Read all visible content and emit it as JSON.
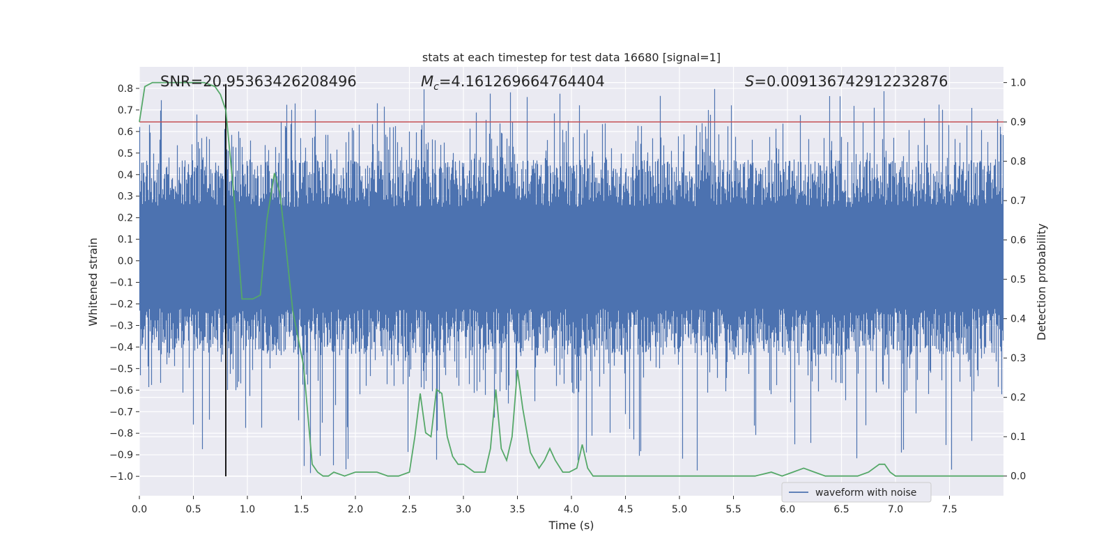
{
  "chart_data": {
    "type": "line",
    "title": "stats at each timestep for test data 16680 [signal=1]",
    "xlabel": "Time (s)",
    "ylabel": "Whitened strain",
    "ylabel_right": "Detection probability",
    "xlim": [
      0.0,
      8.0
    ],
    "ylim": [
      -1.09,
      0.9
    ],
    "ylim_right": [
      -0.05,
      1.04
    ],
    "x_ticks": [
      "0.0",
      "0.5",
      "1.0",
      "1.5",
      "2.0",
      "2.5",
      "3.0",
      "3.5",
      "4.0",
      "4.5",
      "5.0",
      "5.5",
      "6.0",
      "6.5",
      "7.0",
      "7.5"
    ],
    "y_ticks": [
      "0.8",
      "0.7",
      "0.6",
      "0.5",
      "0.4",
      "0.3",
      "0.2",
      "0.1",
      "0.0",
      "−0.1",
      "−0.2",
      "−0.3",
      "−0.4",
      "−0.5",
      "−0.6",
      "−0.7",
      "−0.8",
      "−0.9",
      "−1.0"
    ],
    "y_ticks_right": [
      "1.0",
      "0.9",
      "0.8",
      "0.7",
      "0.6",
      "0.5",
      "0.4",
      "0.3",
      "0.2",
      "0.1",
      "0.0"
    ],
    "annotations": {
      "snr": "SNR=20.95363426208496",
      "mc": "=4.161269664764404",
      "mc_symbol": "M",
      "mc_sub": "c",
      "s": "=0.009136742912232876",
      "s_symbol": "S"
    },
    "threshold_right": 0.9,
    "marker_time": 0.8,
    "series": [
      {
        "name": "waveform with noise",
        "color": "#4c72b0",
        "kind": "strain",
        "noise_band": [
          -0.37,
          0.4
        ],
        "peak_band": [
          -1.0,
          0.8
        ]
      },
      {
        "name": "detection probability",
        "color": "#55a868",
        "axis": "right",
        "x": [
          0.0,
          0.05,
          0.12,
          0.2,
          0.3,
          0.4,
          0.5,
          0.6,
          0.7,
          0.75,
          0.8,
          0.88,
          0.95,
          1.0,
          1.05,
          1.12,
          1.18,
          1.25,
          1.3,
          1.35,
          1.42,
          1.47,
          1.52,
          1.6,
          1.65,
          1.7,
          1.75,
          1.8,
          1.9,
          2.0,
          2.1,
          2.2,
          2.3,
          2.4,
          2.5,
          2.55,
          2.6,
          2.65,
          2.7,
          2.75,
          2.8,
          2.85,
          2.9,
          2.95,
          3.0,
          3.05,
          3.1,
          3.2,
          3.25,
          3.3,
          3.35,
          3.4,
          3.45,
          3.5,
          3.55,
          3.62,
          3.7,
          3.75,
          3.8,
          3.85,
          3.92,
          3.98,
          4.05,
          4.1,
          4.15,
          4.2,
          4.25,
          4.3,
          4.35,
          4.5,
          4.7,
          5.0,
          5.3,
          5.5,
          5.7,
          5.85,
          5.95,
          6.05,
          6.15,
          6.25,
          6.35,
          6.5,
          6.65,
          6.75,
          6.85,
          6.9,
          6.95,
          7.0,
          7.05,
          7.15,
          7.3,
          7.5,
          7.7,
          7.85,
          8.0
        ],
        "values": [
          0.9,
          0.99,
          1.0,
          1.0,
          1.0,
          1.0,
          1.0,
          1.0,
          0.99,
          0.97,
          0.93,
          0.7,
          0.45,
          0.45,
          0.45,
          0.46,
          0.65,
          0.77,
          0.72,
          0.6,
          0.42,
          0.35,
          0.28,
          0.03,
          0.01,
          0.0,
          0.0,
          0.01,
          0.0,
          0.01,
          0.01,
          0.01,
          0.0,
          0.0,
          0.01,
          0.1,
          0.21,
          0.11,
          0.1,
          0.22,
          0.21,
          0.1,
          0.05,
          0.03,
          0.03,
          0.02,
          0.01,
          0.01,
          0.07,
          0.22,
          0.07,
          0.04,
          0.1,
          0.27,
          0.17,
          0.06,
          0.02,
          0.04,
          0.07,
          0.04,
          0.01,
          0.01,
          0.02,
          0.08,
          0.02,
          0.0,
          0.0,
          0.0,
          0.0,
          0.0,
          0.0,
          0.0,
          0.0,
          0.0,
          0.0,
          0.01,
          0.0,
          0.01,
          0.02,
          0.01,
          0.0,
          0.0,
          0.0,
          0.01,
          0.03,
          0.03,
          0.01,
          0.0,
          0.0,
          0.0,
          0.0,
          0.0,
          0.0,
          0.0,
          0.0
        ]
      }
    ],
    "legend": {
      "label": "waveform with noise",
      "placement": "lower-right"
    }
  }
}
